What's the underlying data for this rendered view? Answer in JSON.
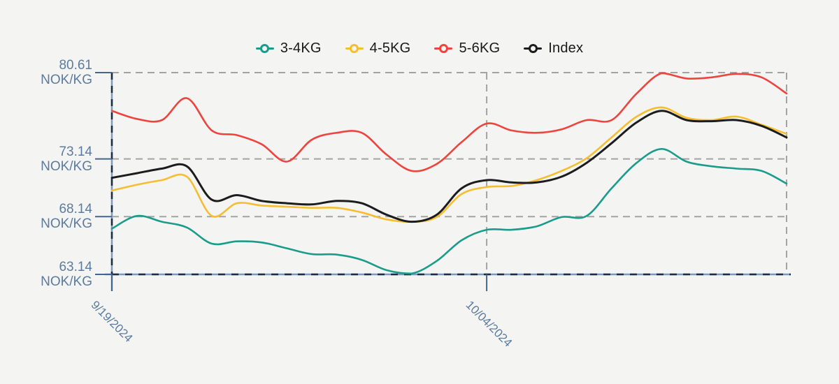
{
  "colors": {
    "background": "#f4f4f2",
    "grid": "#a3a3a3",
    "axis_base": "#8098ba",
    "axis_dash": "#1f2c3f",
    "tick": "#47648f",
    "axis_label": "#5b7b9e",
    "legend_text": "#191919"
  },
  "legend": {
    "items": [
      {
        "label": "3-4KG",
        "color": "#1a9c8a"
      },
      {
        "label": "4-5KG",
        "color": "#f6bd2f"
      },
      {
        "label": "5-6KG",
        "color": "#ee443e"
      },
      {
        "label": "Index",
        "color": "#1c1c1e"
      }
    ]
  },
  "y_axis": {
    "unit": "NOK/KG",
    "ticks": [
      {
        "label": "80.61",
        "value": 80.61
      },
      {
        "label": "73.14",
        "value": 73.14
      },
      {
        "label": "68.14",
        "value": 68.14
      },
      {
        "label": "63.14",
        "value": 63.14
      }
    ]
  },
  "x_axis": {
    "ticks": [
      {
        "label": "9/19/2024",
        "day": 0
      },
      {
        "label": "10/04/2024",
        "day": 15
      }
    ]
  },
  "chart_data": {
    "type": "line",
    "title": "",
    "y_unit": "NOK/KG",
    "ylim": [
      63.14,
      80.61
    ],
    "y_gridlines": [
      80.61,
      73.14,
      68.14,
      63.14
    ],
    "x_unit": "days since 9/19/2024",
    "x": [
      0,
      1,
      2,
      3,
      4,
      5,
      6,
      7,
      8,
      9,
      10,
      11,
      12,
      13,
      14,
      15,
      16,
      17,
      18,
      19,
      20,
      21,
      22,
      23,
      24,
      25,
      26,
      27
    ],
    "x_tick_days": {
      "9/19/2024": 0,
      "10/04/2024": 15
    },
    "legend_position": "top",
    "grid": "dashed",
    "series": [
      {
        "name": "3-4KG",
        "color": "#1a9c8a",
        "values": [
          67.1,
          68.2,
          67.7,
          67.2,
          65.8,
          66.0,
          65.9,
          65.4,
          64.9,
          64.85,
          64.4,
          63.5,
          63.2,
          64.3,
          66.1,
          67.0,
          67.0,
          67.3,
          68.1,
          68.2,
          70.6,
          72.8,
          74.0,
          72.9,
          72.5,
          72.3,
          72.1,
          71.0
        ]
      },
      {
        "name": "4-5KG",
        "color": "#f6bd2f",
        "values": [
          70.4,
          70.9,
          71.3,
          71.6,
          68.2,
          69.3,
          69.1,
          69.0,
          68.9,
          68.9,
          68.5,
          67.9,
          67.7,
          68.1,
          70.1,
          70.7,
          70.8,
          71.3,
          72.1,
          73.2,
          75.0,
          76.8,
          77.6,
          76.7,
          76.5,
          76.8,
          76.1,
          75.3
        ]
      },
      {
        "name": "5-6KG",
        "color": "#ee443e",
        "values": [
          77.3,
          76.6,
          76.5,
          78.4,
          75.6,
          75.2,
          74.4,
          72.9,
          74.8,
          75.4,
          75.4,
          73.5,
          72.1,
          72.7,
          74.6,
          76.2,
          75.6,
          75.4,
          75.7,
          76.5,
          76.5,
          78.8,
          80.6,
          80.1,
          80.2,
          80.5,
          80.2,
          78.8
        ]
      },
      {
        "name": "Index",
        "color": "#1c1c1e",
        "values": [
          71.5,
          71.9,
          72.3,
          72.5,
          69.6,
          70.0,
          69.5,
          69.3,
          69.2,
          69.5,
          69.3,
          68.3,
          67.7,
          68.3,
          70.6,
          71.3,
          71.1,
          71.1,
          71.6,
          72.8,
          74.5,
          76.3,
          77.3,
          76.5,
          76.4,
          76.5,
          76.0,
          75.0
        ]
      }
    ]
  }
}
